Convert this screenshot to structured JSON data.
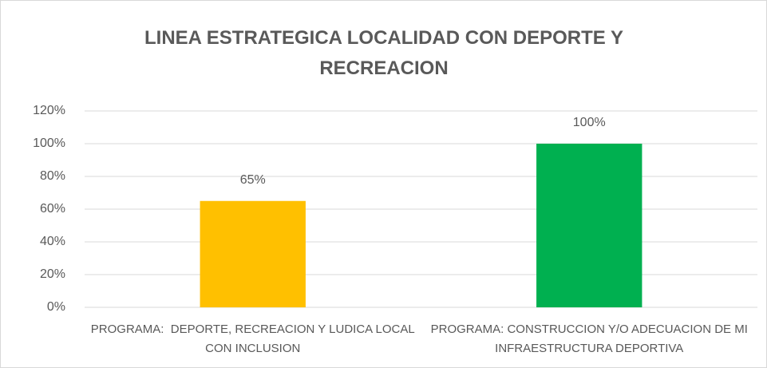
{
  "chart_data": {
    "type": "bar",
    "title": "LINEA ESTRATEGICA LOCALIDAD CON DEPORTE Y RECREACION",
    "categories": [
      "PROGRAMA:  DEPORTE, RECREACION Y LUDICA LOCAL CON INCLUSION",
      "PROGRAMA: CONSTRUCCION Y/O ADECUACION DE MI INFRAESTRUCTURA DEPORTIVA"
    ],
    "values": [
      65,
      100
    ],
    "value_labels": [
      "65%",
      "100%"
    ],
    "colors": [
      "#ffc000",
      "#00b050"
    ],
    "ylim": [
      0,
      120
    ],
    "yticks": [
      {
        "value": 0,
        "label": "0%"
      },
      {
        "value": 20,
        "label": "20%"
      },
      {
        "value": 40,
        "label": "40%"
      },
      {
        "value": 60,
        "label": "60%"
      },
      {
        "value": 80,
        "label": "80%"
      },
      {
        "value": 100,
        "label": "100%"
      },
      {
        "value": 120,
        "label": "120%"
      }
    ],
    "grid": true
  }
}
